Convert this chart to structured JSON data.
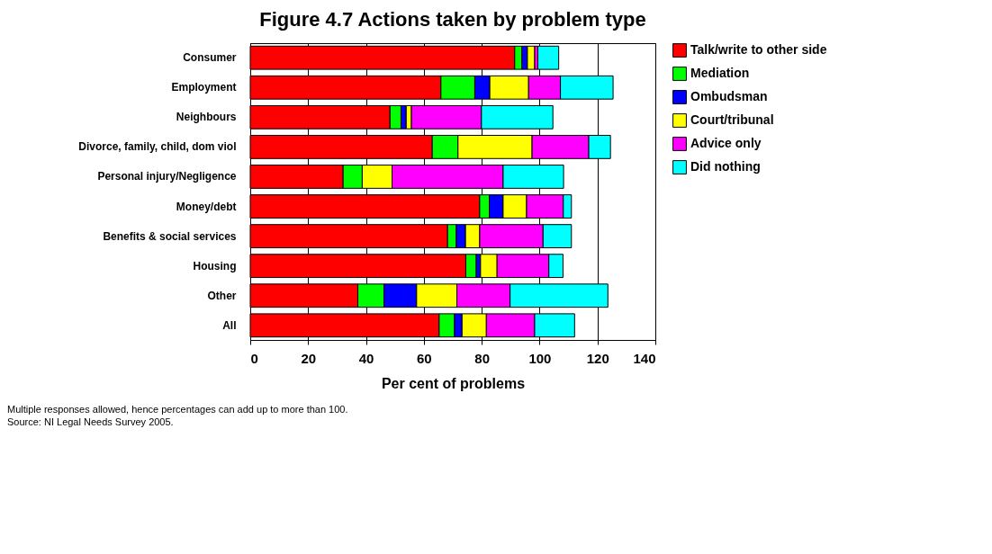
{
  "chart_data": {
    "type": "bar",
    "orientation": "horizontal",
    "stacked": true,
    "title": "Figure 4.7 Actions taken by problem type",
    "xlabel": "Per cent of problems",
    "categories": [
      "Consumer",
      "Employment",
      "Neighbours",
      "Divorce, family, child, dom viol",
      "Personal injury/Negligence",
      "Money/debt",
      "Benefits & social services",
      "Housing",
      "Other",
      "All"
    ],
    "series": [
      {
        "name": "Talk/write to other side",
        "color": "#ff0000",
        "values": [
          91.4,
          65.9,
          48.3,
          62.9,
          32.1,
          79.3,
          68.2,
          74.5,
          37.2,
          65.3
        ]
      },
      {
        "name": "Mediation",
        "color": "#00ff00",
        "values": [
          2.5,
          11.7,
          3.8,
          8.9,
          6.6,
          3.3,
          3.0,
          3.6,
          9.0,
          5.3
        ]
      },
      {
        "name": "Ombudsman",
        "color": "#0000ff",
        "values": [
          1.9,
          5.2,
          1.8,
          null,
          null,
          4.8,
          3.2,
          1.5,
          11.3,
          2.6
        ]
      },
      {
        "name": "Court/tribunal",
        "color": "#ffff00",
        "values": [
          2.5,
          13.4,
          1.8,
          25.6,
          10.3,
          8.1,
          4.9,
          5.7,
          13.9,
          8.4
        ]
      },
      {
        "name": "Advice only",
        "color": "#ff00ff",
        "values": [
          1.1,
          11.0,
          24.2,
          19.6,
          38.4,
          12.7,
          21.9,
          17.9,
          18.4,
          16.7
        ]
      },
      {
        "name": "Did nothing",
        "color": "#00ffff",
        "values": [
          7.2,
          18.2,
          24.7,
          7.5,
          20.9,
          2.8,
          9.8,
          4.9,
          33.8,
          13.8
        ]
      }
    ],
    "xlim": [
      0,
      140
    ],
    "xticks": [
      0,
      20,
      40,
      60,
      80,
      100,
      120,
      140
    ],
    "grid": "x",
    "legend": "right",
    "annotations": [
      "Multiple responses allowed, hence percentages can add up to more than 100.",
      "Source: NI Legal Needs Survey 2005."
    ]
  }
}
